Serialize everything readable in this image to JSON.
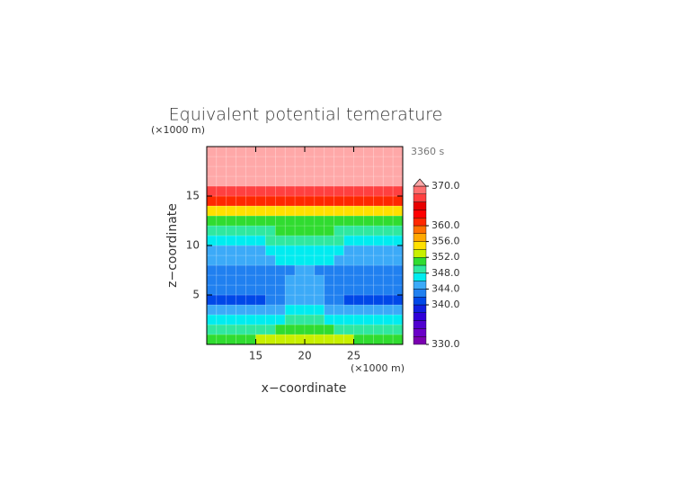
{
  "chart_data": {
    "type": "heatmap",
    "title": "Equivalent potential temerature",
    "annotation": "3360 s",
    "x_label": "x−coordinate",
    "y_label": "z−coordinate",
    "x_unit": "(×1000 m)",
    "y_unit": "(×1000 m)",
    "xlim": [
      10,
      30
    ],
    "ylim": [
      0,
      20
    ],
    "xticks": [
      15,
      20,
      25
    ],
    "yticks": [
      5,
      10,
      15
    ],
    "x": [
      10.5,
      11.5,
      12.5,
      13.5,
      14.5,
      15.5,
      16.5,
      17.5,
      18.5,
      19.5,
      20.5,
      21.5,
      22.5,
      23.5,
      24.5,
      25.5,
      26.5,
      27.5,
      28.5,
      29.5
    ],
    "y": [
      0.5,
      1.5,
      2.5,
      3.5,
      4.5,
      5.5,
      6.5,
      7.5,
      8.5,
      9.5,
      10.5,
      11.5,
      12.5,
      13.5,
      14.5,
      15.5,
      16.5,
      17.5,
      18.5,
      19.5
    ],
    "values": [
      [
        350,
        350,
        350,
        350,
        350,
        352,
        352,
        352,
        353,
        353,
        353,
        353,
        352,
        352,
        352,
        350,
        350,
        350,
        350,
        350
      ],
      [
        348,
        348,
        348,
        348,
        348,
        348,
        348,
        350,
        350,
        350,
        350,
        350,
        350,
        348,
        348,
        348,
        348,
        348,
        348,
        348
      ],
      [
        346,
        346,
        346,
        346,
        346,
        346,
        346,
        346,
        348,
        348,
        348,
        348,
        346,
        346,
        346,
        346,
        346,
        346,
        346,
        346
      ],
      [
        344,
        344,
        344,
        344,
        344,
        344,
        344,
        344,
        346,
        346,
        346,
        346,
        344,
        344,
        344,
        344,
        344,
        344,
        344,
        344
      ],
      [
        341,
        341,
        341,
        341,
        341,
        341,
        343,
        343,
        345,
        345,
        345,
        345,
        343,
        343,
        341,
        341,
        341,
        341,
        341,
        341
      ],
      [
        343,
        343,
        343,
        343,
        343,
        343,
        343,
        343,
        345,
        345,
        345,
        345,
        343,
        343,
        343,
        343,
        343,
        343,
        343,
        343
      ],
      [
        343,
        343,
        343,
        343,
        343,
        343,
        343,
        343,
        345,
        345,
        345,
        345,
        343,
        343,
        343,
        343,
        343,
        343,
        343,
        343
      ],
      [
        343,
        343,
        343,
        343,
        343,
        343,
        343,
        343,
        343,
        345,
        345,
        343,
        343,
        343,
        343,
        343,
        343,
        343,
        343,
        343
      ],
      [
        345,
        345,
        345,
        345,
        345,
        345,
        345,
        346,
        346,
        346,
        346,
        346,
        346,
        345,
        345,
        345,
        345,
        345,
        345,
        345
      ],
      [
        345,
        345,
        345,
        345,
        345,
        345,
        347,
        347,
        347,
        347,
        347,
        347,
        347,
        347,
        345,
        345,
        345,
        345,
        345,
        345
      ],
      [
        347,
        347,
        347,
        347,
        347,
        347,
        349,
        349,
        349,
        349,
        349,
        349,
        349,
        349,
        347,
        347,
        347,
        347,
        347,
        347
      ],
      [
        349,
        349,
        349,
        349,
        349,
        349,
        349,
        350,
        350,
        350,
        350,
        350,
        350,
        349,
        349,
        349,
        349,
        349,
        349,
        349
      ],
      [
        351,
        351,
        351,
        351,
        351,
        351,
        351,
        351,
        351,
        351,
        351,
        351,
        351,
        351,
        351,
        351,
        351,
        351,
        351,
        351
      ],
      [
        355,
        355,
        355,
        355,
        355,
        355,
        355,
        355,
        355,
        355,
        355,
        355,
        355,
        355,
        355,
        355,
        355,
        355,
        355,
        355
      ],
      [
        361,
        361,
        361,
        361,
        361,
        361,
        361,
        361,
        361,
        361,
        361,
        361,
        361,
        361,
        361,
        361,
        361,
        361,
        361,
        361
      ],
      [
        367,
        367,
        367,
        367,
        367,
        367,
        367,
        367,
        367,
        367,
        367,
        367,
        367,
        367,
        367,
        367,
        367,
        367,
        367,
        367
      ],
      [
        372,
        372,
        372,
        372,
        372,
        372,
        372,
        372,
        372,
        372,
        372,
        372,
        372,
        372,
        372,
        372,
        372,
        372,
        372,
        372
      ],
      [
        372,
        372,
        372,
        372,
        372,
        372,
        372,
        372,
        372,
        372,
        372,
        372,
        372,
        372,
        372,
        372,
        372,
        372,
        372,
        372
      ],
      [
        372,
        372,
        372,
        372,
        372,
        372,
        372,
        372,
        372,
        372,
        372,
        372,
        372,
        372,
        372,
        372,
        372,
        372,
        372,
        372
      ],
      [
        372,
        372,
        372,
        372,
        372,
        372,
        372,
        372,
        372,
        372,
        372,
        372,
        372,
        372,
        372,
        372,
        372,
        372,
        372,
        372
      ]
    ],
    "levels": [
      330,
      332,
      334,
      336,
      338,
      340,
      342,
      344,
      346,
      348,
      350,
      352,
      354,
      356,
      358,
      360,
      362,
      364,
      366,
      368,
      370
    ],
    "colors": [
      "#7a00b0",
      "#6a00c8",
      "#5000d0",
      "#3000d8",
      "#1020e0",
      "#0048e8",
      "#2080f0",
      "#3caaf8",
      "#00ecf0",
      "#30e8a0",
      "#30dc30",
      "#c8f000",
      "#ffe000",
      "#ffa800",
      "#ff7000",
      "#ff2800",
      "#ff0000",
      "#e80000",
      "#ff4040",
      "#ff7070"
    ],
    "over_color": "#ffa8a8",
    "colorbar_ticks": [
      {
        "value": 370,
        "label": "370.0"
      },
      {
        "value": 360,
        "label": "360.0"
      },
      {
        "value": 356,
        "label": "356.0"
      },
      {
        "value": 352,
        "label": "352.0"
      },
      {
        "value": 348,
        "label": "348.0"
      },
      {
        "value": 344,
        "label": "344.0"
      },
      {
        "value": 340,
        "label": "340.0"
      },
      {
        "value": 330,
        "label": "330.0"
      }
    ],
    "grid": true
  }
}
